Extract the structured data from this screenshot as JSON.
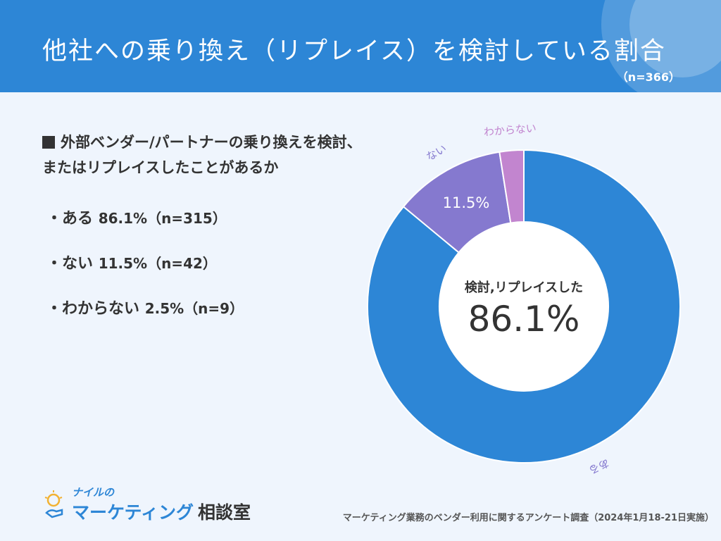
{
  "header": {
    "title": "他社への乗り換え（リプレイス）を検討している割合",
    "sample": "（n=366）"
  },
  "question": {
    "line1": "外部ベンダー/パートナーの乗り換えを検討、",
    "line2": "またはリプレイスしたことがあるか"
  },
  "answers": [
    {
      "label": "・ある",
      "value": "86.1%（n=315）"
    },
    {
      "label": "・ない",
      "value": "11.5%（n=42）"
    },
    {
      "label": "・わからない",
      "value": "2.5%（n=9）"
    }
  ],
  "chart_data": {
    "type": "pie",
    "donut": true,
    "slices": [
      {
        "label": "ある",
        "value": 86.1,
        "color": "#2D86D6"
      },
      {
        "label": "ない",
        "value": 11.5,
        "color": "#8579CF"
      },
      {
        "label": "わからない",
        "value": 2.5,
        "color": "#C285CF"
      }
    ],
    "slice_value_label": "11.5%",
    "center_label": "検討,リプレイスした",
    "center_value": "86.1%"
  },
  "logo": {
    "small": "ナイルの",
    "main": "マーケティング",
    "suffix": "相談室"
  },
  "footer": {
    "source": "マーケティング業務のベンダー利用に関するアンケート調査（2024年1月18-21日実施）"
  },
  "colors": {
    "header": "#2D86D6",
    "background": "#EFF5FD"
  }
}
